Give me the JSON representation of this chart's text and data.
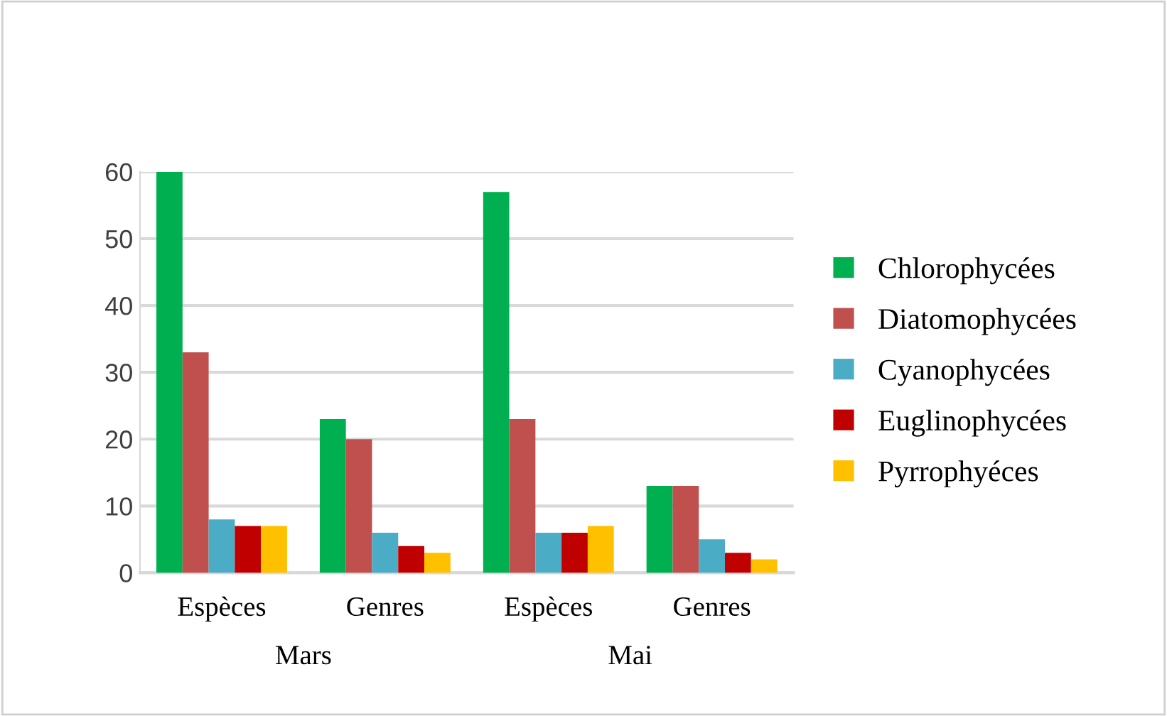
{
  "chart_data": {
    "type": "bar",
    "categories": [
      "Espèces",
      "Genres",
      "Espèces",
      "Genres"
    ],
    "series": [
      {
        "name": "Chlorophycées",
        "color": "#00b050",
        "values": [
          60,
          23,
          57,
          13
        ]
      },
      {
        "name": "Diatomophycées",
        "color": "#c0504d",
        "values": [
          33,
          20,
          23,
          13
        ]
      },
      {
        "name": "Cyanophycées",
        "color": "#4bacc6",
        "values": [
          8,
          6,
          6,
          5
        ]
      },
      {
        "name": "Euglinophycées",
        "color": "#c00000",
        "values": [
          7,
          4,
          6,
          3
        ]
      },
      {
        "name": "Pyrrophyéces",
        "color": "#ffc000",
        "values": [
          7,
          3,
          7,
          2
        ]
      }
    ],
    "annotations": [
      "Mars",
      "Mai"
    ],
    "ylim": [
      0,
      60
    ],
    "yticks": [
      0,
      10,
      20,
      30,
      40,
      50,
      60
    ],
    "grid": "y",
    "legend": "right"
  }
}
